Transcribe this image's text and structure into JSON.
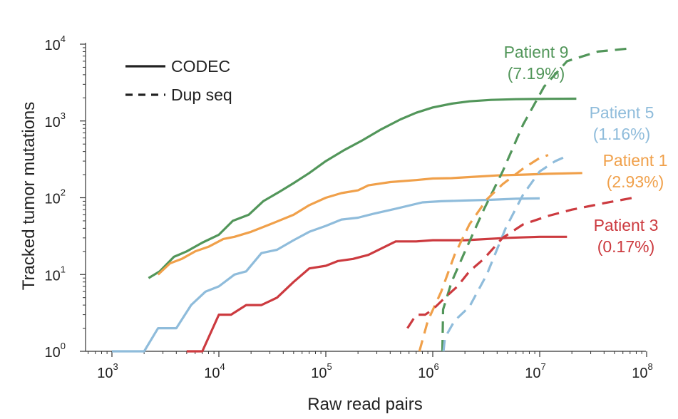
{
  "chart_data": {
    "type": "line",
    "title": "",
    "xlabel": "Raw read pairs",
    "ylabel": "Tracked tumor mutations",
    "x_scale": "log",
    "y_scale": "log",
    "xlim": [
      1000,
      100000000
    ],
    "ylim": [
      1,
      10000
    ],
    "grid": false,
    "x_ticks": [
      {
        "value": 1000,
        "base": "10",
        "exp": "3"
      },
      {
        "value": 10000,
        "base": "10",
        "exp": "4"
      },
      {
        "value": 100000,
        "base": "10",
        "exp": "5"
      },
      {
        "value": 1000000,
        "base": "10",
        "exp": "6"
      },
      {
        "value": 10000000,
        "base": "10",
        "exp": "7"
      },
      {
        "value": 100000000,
        "base": "10",
        "exp": "8"
      }
    ],
    "y_ticks": [
      {
        "value": 1,
        "base": "10",
        "exp": "0"
      },
      {
        "value": 10,
        "base": "10",
        "exp": "1"
      },
      {
        "value": 100,
        "base": "10",
        "exp": "2"
      },
      {
        "value": 1000,
        "base": "10",
        "exp": "3"
      },
      {
        "value": 10000,
        "base": "10",
        "exp": "4"
      }
    ],
    "legend": {
      "placement": "top-left",
      "entries": [
        {
          "label": "CODEC",
          "style": "solid"
        },
        {
          "label": "Dup seq",
          "style": "dashed"
        }
      ]
    },
    "series": [
      {
        "name": "Patient 9 CODEC",
        "patient": "Patient 9",
        "method": "CODEC",
        "color": "#52965a",
        "style": "solid",
        "points": [
          [
            2200,
            9
          ],
          [
            2800,
            11
          ],
          [
            3800,
            17
          ],
          [
            5000,
            20
          ],
          [
            7000,
            26
          ],
          [
            10000,
            33
          ],
          [
            13500,
            50
          ],
          [
            19000,
            60
          ],
          [
            26000,
            90
          ],
          [
            37000,
            120
          ],
          [
            50000,
            155
          ],
          [
            70000,
            210
          ],
          [
            100000,
            300
          ],
          [
            150000,
            420
          ],
          [
            220000,
            560
          ],
          [
            330000,
            780
          ],
          [
            500000,
            1050
          ],
          [
            700000,
            1280
          ],
          [
            1000000,
            1500
          ],
          [
            1500000,
            1680
          ],
          [
            2200000,
            1800
          ],
          [
            3500000,
            1880
          ],
          [
            6000000,
            1920
          ],
          [
            12000000,
            1940
          ],
          [
            22000000,
            1950
          ]
        ]
      },
      {
        "name": "Patient 1 CODEC",
        "patient": "Patient 1",
        "method": "CODEC",
        "color": "#f0a04a",
        "style": "solid",
        "points": [
          [
            2700,
            10
          ],
          [
            3500,
            14
          ],
          [
            4500,
            16
          ],
          [
            6000,
            20
          ],
          [
            8000,
            23
          ],
          [
            11000,
            29
          ],
          [
            14000,
            31
          ],
          [
            20000,
            36
          ],
          [
            30000,
            45
          ],
          [
            50000,
            60
          ],
          [
            70000,
            80
          ],
          [
            100000,
            100
          ],
          [
            140000,
            115
          ],
          [
            200000,
            125
          ],
          [
            250000,
            145
          ],
          [
            400000,
            160
          ],
          [
            700000,
            170
          ],
          [
            1000000,
            178
          ],
          [
            1500000,
            180
          ],
          [
            2500000,
            188
          ],
          [
            4000000,
            195
          ],
          [
            7000000,
            200
          ],
          [
            12000000,
            205
          ],
          [
            25000000,
            210
          ]
        ]
      },
      {
        "name": "Patient 5 CODEC",
        "patient": "Patient 5",
        "method": "CODEC",
        "color": "#8fbcdb",
        "style": "solid",
        "points": [
          [
            1000,
            1
          ],
          [
            1500,
            1
          ],
          [
            2000,
            1
          ],
          [
            2700,
            2
          ],
          [
            4000,
            2
          ],
          [
            5500,
            4
          ],
          [
            7500,
            6
          ],
          [
            10000,
            7
          ],
          [
            14000,
            10
          ],
          [
            18000,
            11
          ],
          [
            25000,
            19
          ],
          [
            35000,
            21
          ],
          [
            50000,
            28
          ],
          [
            70000,
            36
          ],
          [
            100000,
            43
          ],
          [
            140000,
            52
          ],
          [
            200000,
            55
          ],
          [
            280000,
            62
          ],
          [
            450000,
            72
          ],
          [
            800000,
            87
          ],
          [
            1200000,
            90
          ],
          [
            2000000,
            92
          ],
          [
            3500000,
            94
          ],
          [
            6000000,
            97
          ],
          [
            10000000,
            98
          ]
        ]
      },
      {
        "name": "Patient 3 CODEC",
        "patient": "Patient 3",
        "method": "CODEC",
        "color": "#cc3a3f",
        "style": "solid",
        "points": [
          [
            5000,
            1
          ],
          [
            7000,
            1
          ],
          [
            10000,
            3
          ],
          [
            13000,
            3
          ],
          [
            18000,
            4
          ],
          [
            25000,
            4
          ],
          [
            35000,
            5
          ],
          [
            50000,
            8
          ],
          [
            70000,
            12
          ],
          [
            100000,
            13
          ],
          [
            130000,
            15
          ],
          [
            180000,
            16
          ],
          [
            250000,
            18
          ],
          [
            450000,
            27
          ],
          [
            700000,
            27
          ],
          [
            1000000,
            28
          ],
          [
            2000000,
            28
          ],
          [
            5000000,
            30
          ],
          [
            10000000,
            31
          ],
          [
            18000000,
            31
          ]
        ]
      },
      {
        "name": "Patient 9 Dup seq",
        "patient": "Patient 9",
        "method": "Dup seq",
        "color": "#52965a",
        "style": "dashed",
        "points": [
          [
            1230000,
            1
          ],
          [
            1250000,
            3.5
          ],
          [
            1500000,
            8
          ],
          [
            2000000,
            20
          ],
          [
            3000000,
            70
          ],
          [
            4500000,
            220
          ],
          [
            7000000,
            900
          ],
          [
            11000000,
            2800
          ],
          [
            18000000,
            6000
          ],
          [
            35000000,
            8000
          ],
          [
            75000000,
            8900
          ]
        ]
      },
      {
        "name": "Patient 1 Dup seq",
        "patient": "Patient 1",
        "method": "Dup seq",
        "color": "#f0a04a",
        "style": "dashed",
        "points": [
          [
            750000,
            1
          ],
          [
            900000,
            2.5
          ],
          [
            1200000,
            6
          ],
          [
            1600000,
            18
          ],
          [
            2200000,
            45
          ],
          [
            3200000,
            95
          ],
          [
            4500000,
            150
          ],
          [
            7000000,
            240
          ],
          [
            10000000,
            330
          ],
          [
            12000000,
            360
          ]
        ]
      },
      {
        "name": "Patient 5 Dup seq",
        "patient": "Patient 5",
        "method": "Dup seq",
        "color": "#8fbcdb",
        "style": "dashed",
        "points": [
          [
            1260000,
            1
          ],
          [
            1300000,
            1.5
          ],
          [
            1600000,
            2.5
          ],
          [
            2200000,
            3.8
          ],
          [
            3200000,
            10
          ],
          [
            4800000,
            40
          ],
          [
            7000000,
            110
          ],
          [
            10000000,
            220
          ],
          [
            14000000,
            300
          ],
          [
            18000000,
            350
          ]
        ]
      },
      {
        "name": "Patient 3 Dup seq",
        "patient": "Patient 3",
        "method": "Dup seq",
        "color": "#cc3a3f",
        "style": "dashed",
        "points": [
          [
            580000,
            2
          ],
          [
            700000,
            3
          ],
          [
            850000,
            3
          ],
          [
            1000000,
            3.5
          ],
          [
            1300000,
            5
          ],
          [
            1700000,
            7
          ],
          [
            2200000,
            11
          ],
          [
            3000000,
            16
          ],
          [
            4500000,
            30
          ],
          [
            7000000,
            45
          ],
          [
            12000000,
            58
          ],
          [
            20000000,
            70
          ],
          [
            40000000,
            85
          ],
          [
            75000000,
            100
          ]
        ]
      }
    ],
    "annotations": [
      {
        "lines": [
          "Patient 9",
          "(7.19%)"
        ],
        "color": "#52965a"
      },
      {
        "lines": [
          "Patient 5",
          "(1.16%)"
        ],
        "color": "#8fbcdb"
      },
      {
        "lines": [
          "Patient 1",
          "(2.93%)"
        ],
        "color": "#f0a04a"
      },
      {
        "lines": [
          "Patient 3",
          "(0.17%)"
        ],
        "color": "#cc3a3f"
      }
    ]
  }
}
